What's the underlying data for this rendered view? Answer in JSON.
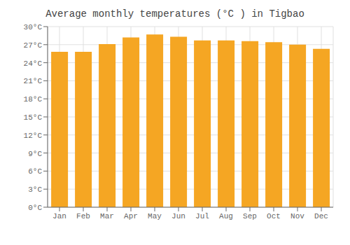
{
  "chart_data": {
    "type": "bar",
    "title": "Average monthly temperatures (°C ) in Tigbao",
    "categories": [
      "Jan",
      "Feb",
      "Mar",
      "Apr",
      "May",
      "Jun",
      "Jul",
      "Aug",
      "Sep",
      "Oct",
      "Nov",
      "Dec"
    ],
    "values": [
      25.8,
      25.8,
      27.1,
      28.2,
      28.7,
      28.3,
      27.7,
      27.7,
      27.6,
      27.4,
      27.0,
      26.3
    ],
    "color": "#F5A623",
    "ylim": [
      0,
      30
    ],
    "yticks": [
      {
        "value": 0,
        "label": "0°C"
      },
      {
        "value": 3,
        "label": "3°C"
      },
      {
        "value": 6,
        "label": "6°C"
      },
      {
        "value": 9,
        "label": "9°C"
      },
      {
        "value": 12,
        "label": "12°C"
      },
      {
        "value": 15,
        "label": "15°C"
      },
      {
        "value": 18,
        "label": "18°C"
      },
      {
        "value": 21,
        "label": "21°C"
      },
      {
        "value": 24,
        "label": "24°C"
      },
      {
        "value": 27,
        "label": "27°C"
      },
      {
        "value": 30,
        "label": "30°C"
      }
    ],
    "grid": true
  }
}
